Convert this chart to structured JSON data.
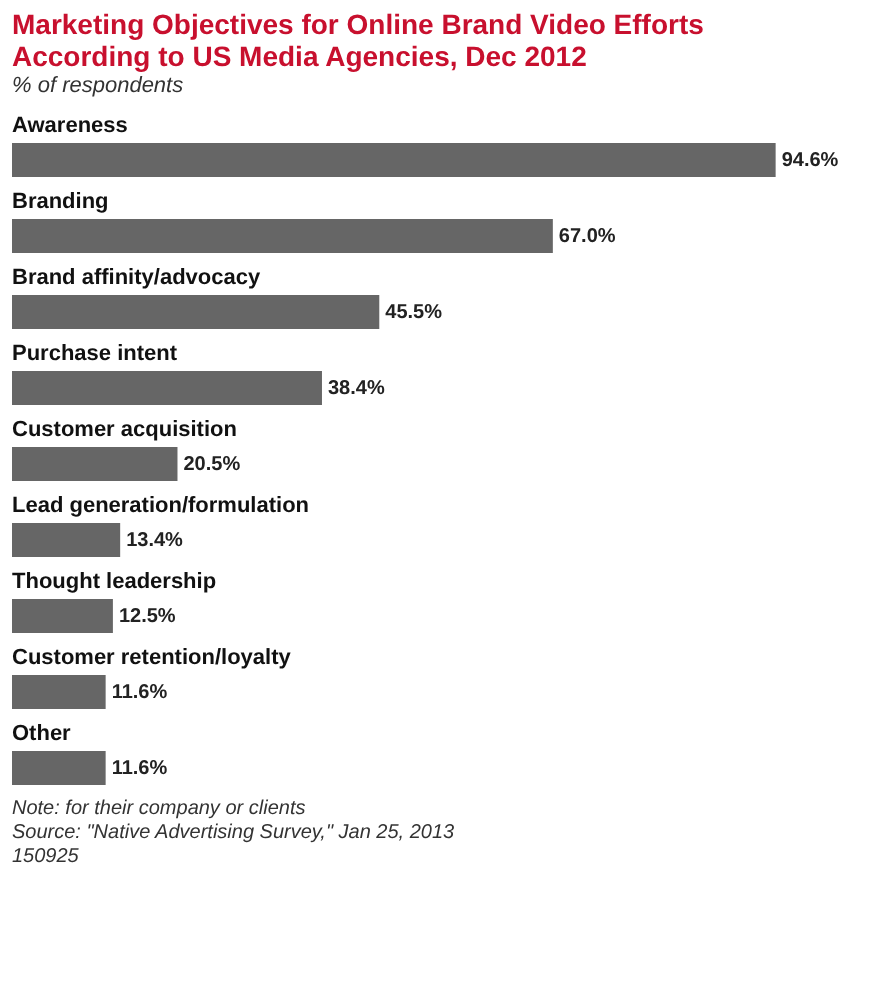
{
  "chart_data": {
    "type": "bar",
    "orientation": "horizontal",
    "title": "Marketing Objectives for Online Brand Video Efforts According to US Media Agencies, Dec 2012",
    "subtitle": "% of respondents",
    "categories": [
      "Awareness",
      "Branding",
      "Brand affinity/advocacy",
      "Purchase intent",
      "Customer acquisition",
      "Lead generation/formulation",
      "Thought leadership",
      "Customer retention/loyalty",
      "Other"
    ],
    "values": [
      94.6,
      67.0,
      45.5,
      38.4,
      20.5,
      13.4,
      12.5,
      11.6,
      11.6
    ],
    "value_labels": [
      "94.6%",
      "67.0%",
      "45.5%",
      "38.4%",
      "20.5%",
      "13.4%",
      "12.5%",
      "11.6%",
      "11.6%"
    ],
    "color": "#666666",
    "annotations": [
      "Note: for their company or clients",
      "Source: \"Native Advertising Survey,\" Jan 25, 2013",
      "150925"
    ]
  }
}
